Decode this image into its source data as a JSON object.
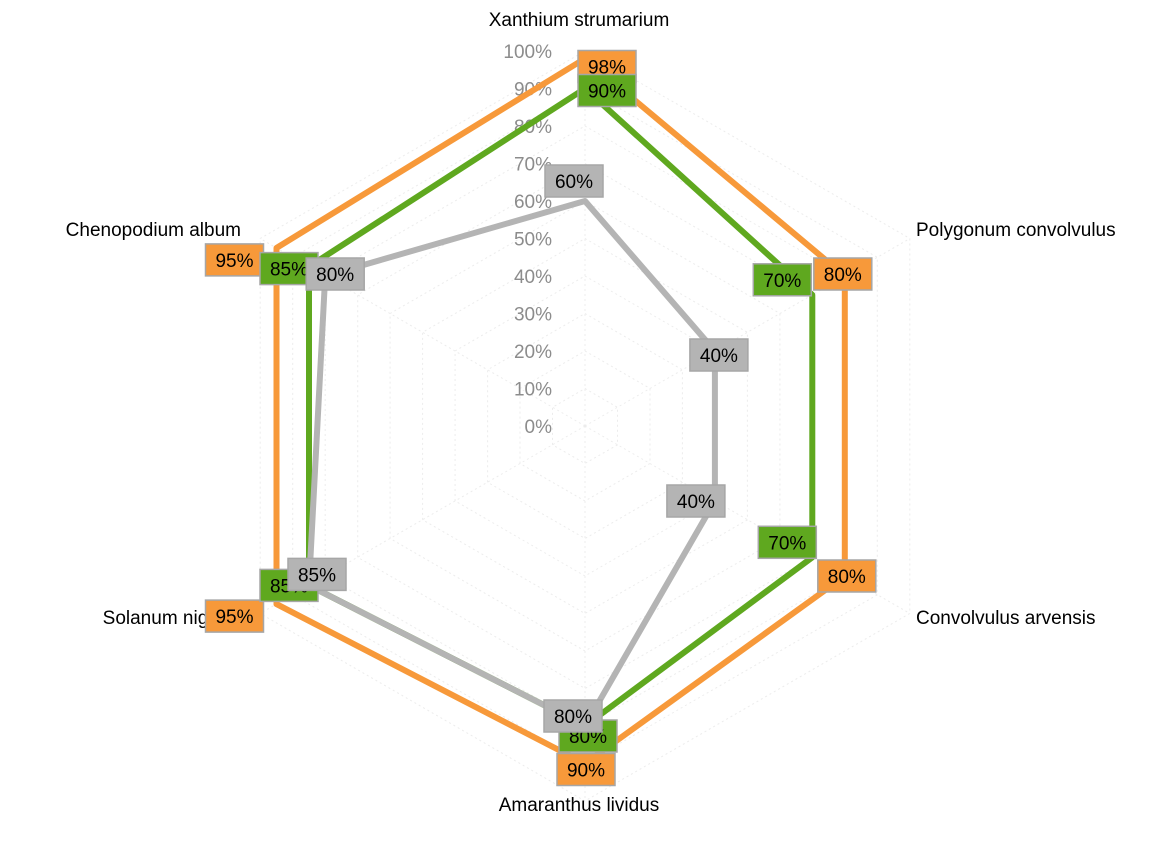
{
  "chart_data": {
    "type": "radar",
    "title": "",
    "categories": [
      "Xanthium strumarium",
      "Polygonum convolvulus",
      "Convolvulus arvensis",
      "Amaranthus lividus",
      "Solanum nigrum",
      "Chenopodium album"
    ],
    "r_ticks": [
      "0%",
      "10%",
      "20%",
      "30%",
      "40%",
      "50%",
      "60%",
      "70%",
      "80%",
      "90%",
      "100%"
    ],
    "r_range": [
      0,
      100
    ],
    "grid": true,
    "legend": "none",
    "series": [
      {
        "values": [
          98,
          80,
          80,
          90,
          95,
          95
        ],
        "labels": [
          "98%",
          "80%",
          "80%",
          "90%",
          "95%",
          "95%"
        ],
        "color": "#f7993a"
      },
      {
        "values": [
          90,
          70,
          70,
          80,
          85,
          85
        ],
        "labels": [
          "90%",
          "70%",
          "70%",
          "80%",
          "85%",
          "85%"
        ],
        "color": "#5fa81f"
      },
      {
        "values": [
          60,
          40,
          40,
          80,
          85,
          80
        ],
        "labels": [
          "60%",
          "40%",
          "40%",
          "80%",
          "85%",
          "80%"
        ],
        "color": "#b4b4b4"
      }
    ]
  }
}
